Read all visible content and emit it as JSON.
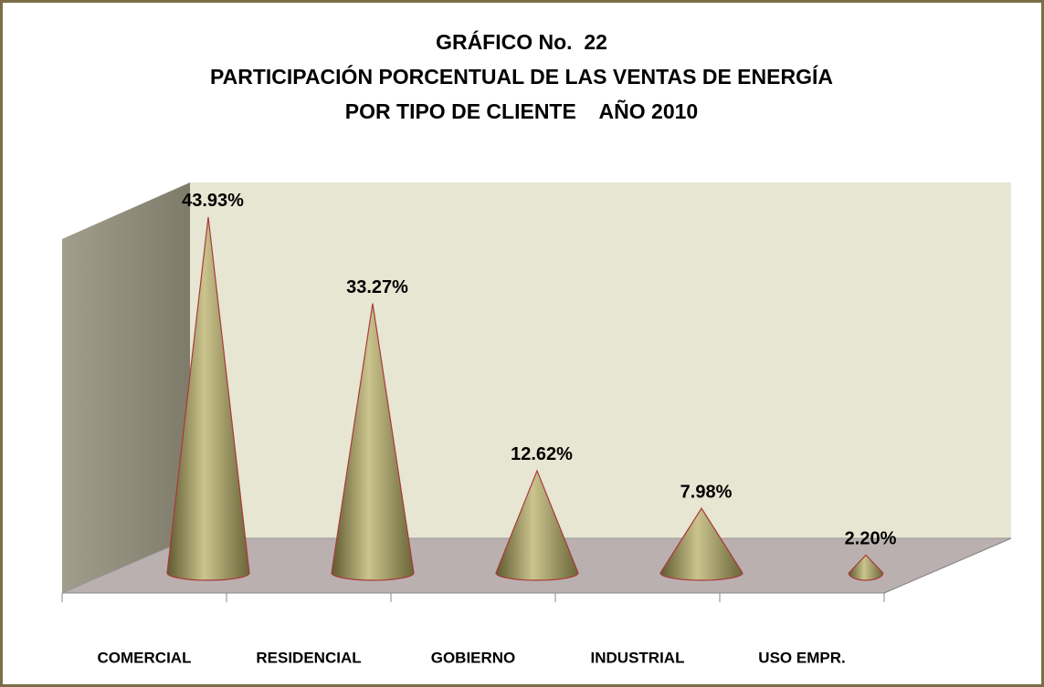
{
  "chart_data": {
    "type": "cone",
    "title": [
      "GRÁFICO No.  22",
      "PARTICIPACIÓN PORCENTUAL DE LAS VENTAS DE ENERGÍA",
      "POR TIPO DE CLIENTE    AÑO 2010"
    ],
    "categories": [
      "COMERCIAL",
      "RESIDENCIAL",
      "GOBIERNO",
      "INDUSTRIAL",
      "USO EMPR."
    ],
    "values": [
      43.93,
      33.27,
      12.62,
      7.98,
      2.2
    ],
    "value_labels": [
      "43.93%",
      "33.27%",
      "12.62%",
      "7.98%",
      "2.20%"
    ],
    "color": "#8a8450"
  }
}
